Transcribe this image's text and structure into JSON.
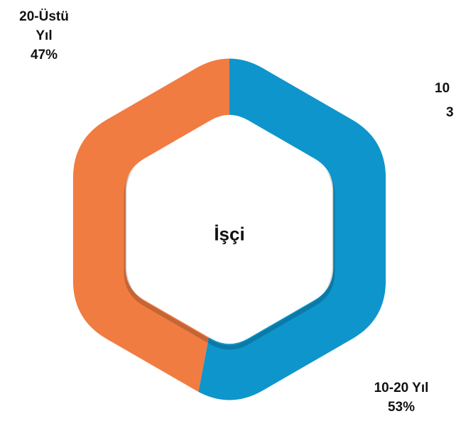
{
  "chart_data": {
    "type": "hexdonut",
    "center_label": "İşçi",
    "categories": [
      "10-20 Yıl",
      "20-Üstü Yıl"
    ],
    "values": [
      53,
      47
    ],
    "value_labels": [
      "53%",
      "47%"
    ],
    "colors": [
      "#0e95cc",
      "#f07c42"
    ],
    "annotations": [
      "10",
      "3"
    ]
  }
}
